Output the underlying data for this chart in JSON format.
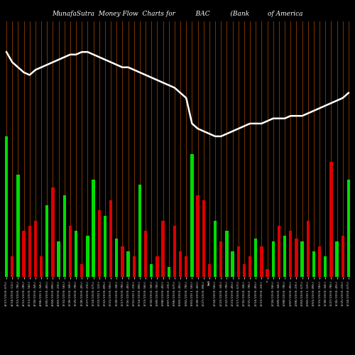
{
  "title": "MunafaSutra  Money Flow  Charts for          BAC          (Bank         of America",
  "background_color": "#000000",
  "bar_color_green": "#00dd00",
  "bar_color_red": "#dd0000",
  "line_color": "#ffffff",
  "orange_color": "#cc5500",
  "num_bars": 60,
  "bar_values": [
    55,
    8,
    40,
    18,
    20,
    22,
    8,
    28,
    35,
    14,
    32,
    20,
    18,
    5,
    16,
    38,
    26,
    24,
    30,
    15,
    12,
    10,
    8,
    36,
    18,
    5,
    8,
    22,
    4,
    20,
    10,
    8,
    48,
    32,
    30,
    5,
    22,
    14,
    18,
    10,
    12,
    5,
    8,
    15,
    12,
    3,
    14,
    20,
    16,
    18,
    15,
    14,
    22,
    10,
    12,
    8,
    45,
    14,
    16,
    38
  ],
  "bar_colors": [
    "g",
    "r",
    "g",
    "r",
    "r",
    "r",
    "r",
    "g",
    "r",
    "g",
    "g",
    "r",
    "g",
    "r",
    "g",
    "g",
    "r",
    "g",
    "r",
    "g",
    "r",
    "g",
    "r",
    "g",
    "r",
    "g",
    "r",
    "r",
    "g",
    "r",
    "r",
    "r",
    "g",
    "r",
    "r",
    "r",
    "g",
    "r",
    "g",
    "g",
    "r",
    "r",
    "r",
    "g",
    "r",
    "r",
    "g",
    "r",
    "g",
    "r",
    "r",
    "g",
    "r",
    "g",
    "r",
    "g",
    "r",
    "g",
    "r",
    "g"
  ],
  "line_values": [
    88,
    84,
    82,
    80,
    79,
    81,
    82,
    83,
    84,
    85,
    86,
    87,
    87,
    88,
    88,
    87,
    86,
    85,
    84,
    83,
    82,
    82,
    81,
    80,
    79,
    78,
    77,
    76,
    75,
    74,
    72,
    70,
    60,
    58,
    57,
    56,
    55,
    55,
    56,
    57,
    58,
    59,
    60,
    60,
    60,
    61,
    62,
    62,
    62,
    63,
    63,
    63,
    64,
    65,
    66,
    67,
    68,
    69,
    70,
    72
  ],
  "xlabels": [
    "4/17/23(0.67%)",
    "4/14/23(0.11%)",
    "4/13/23(0.78%)",
    "4/12/23(0.28%)",
    "4/11/23(0.56%)",
    "4/10/23(0.34%)",
    "4/06/23(1.34%)",
    "4/05/23(0.45%)",
    "4/04/23(0.89%)",
    "4/03/23(0.23%)",
    "3/31/23(0.56%)",
    "3/30/23(0.34%)",
    "3/29/23(0.78%)",
    "3/28/23(0.45%)",
    "3/27/23(0.23%)",
    "3/24/23(0.67%)",
    "3/23/23(1.12%)",
    "3/22/23(0.89%)",
    "3/21/23(0.56%)",
    "3/20/23(0.34%)",
    "3/17/23(0.78%)",
    "3/16/23(0.45%)",
    "3/15/23(1.23%)",
    "3/14/23(0.89%)",
    "3/13/23(0.56%)",
    "3/10/23(0.34%)",
    "3/09/23(0.78%)",
    "3/08/23(0.45%)",
    "3/07/23(0.23%)",
    "3/06/23(0.67%)",
    "3/03/23(0.45%)",
    "3/02/23(0.78%)",
    "3/01/23(1.56%)",
    "2/28/23(0.45%)",
    "2/27/23(0.89%)",
    "NaN",
    "2/24/23(0.56%)",
    "2/23/23(0.34%)",
    "2/22/23(0.78%)",
    "2/21/23(0.45%)",
    "2/17/23(0.67%)",
    "2/16/23(0.34%)",
    "2/15/23(0.78%)",
    "2/14/23(0.45%)",
    "2/13/23(0.23%)",
    "e",
    "2/10/23(0.56%)",
    "2/09/23(0.34%)",
    "2/08/23(0.78%)",
    "2/07/23(0.45%)",
    "2/06/23(0.23%)",
    "2/03/23(0.67%)",
    "2/02/23(1.12%)",
    "2/01/23(0.89%)",
    "1/31/23(0.56%)",
    "1/30/23(0.34%)",
    "1/27/23(0.78%)",
    "1/26/23(0.45%)",
    "1/25/23(0.23%)",
    "1/24/23(0.67%)"
  ]
}
